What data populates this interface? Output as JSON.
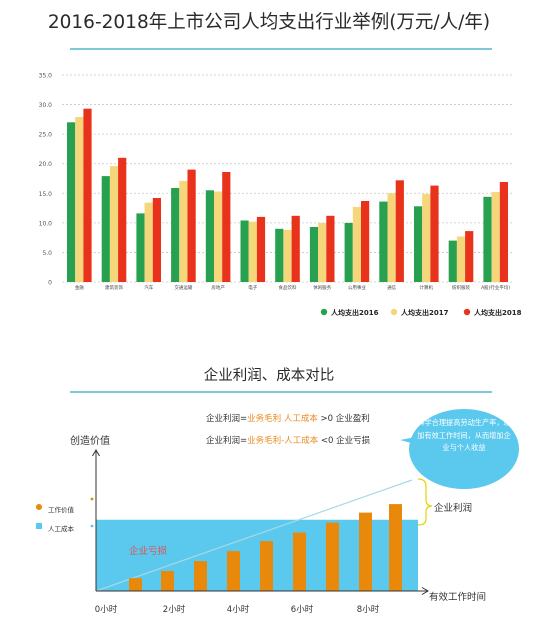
{
  "chart_data": [
    {
      "type": "bar",
      "title": "2016-2018年上市公司人均支出行业举例(万元/人/年)",
      "ylim": [
        0,
        35
      ],
      "yticks": [
        "0",
        "5.0",
        "10.0",
        "15.0",
        "20.0",
        "25.0",
        "30.0",
        "35.0"
      ],
      "categories": [
        "金融",
        "建筑装饰",
        "汽车",
        "交通运输",
        "房地产",
        "电子",
        "食品饮料",
        "休闲服务",
        "公用事业",
        "通信",
        "计算机",
        "纺织服装",
        "A股(行业平均)"
      ],
      "series": [
        {
          "name": "人均支出2016",
          "color": "#27a14f",
          "values": [
            27.0,
            17.9,
            11.6,
            15.9,
            15.5,
            10.4,
            9.0,
            9.3,
            10.0,
            13.6,
            12.8,
            7.0,
            14.4
          ]
        },
        {
          "name": "人均支出2017",
          "color": "#f6d67a",
          "values": [
            27.9,
            19.6,
            13.4,
            17.1,
            15.3,
            10.2,
            8.8,
            10.0,
            12.7,
            15.0,
            14.9,
            7.7,
            15.2
          ]
        },
        {
          "name": "人均支出2018",
          "color": "#e8321b",
          "values": [
            29.3,
            21.0,
            14.2,
            19.0,
            18.6,
            11.0,
            11.2,
            11.2,
            13.7,
            17.2,
            16.3,
            8.6,
            16.9
          ]
        }
      ],
      "grid": true,
      "legend": "bottom-right"
    },
    {
      "type": "bar",
      "title": "企业利润、成本对比",
      "ylabel": "创造价值",
      "xlabel": "有效工作时间",
      "x_tick_labels": [
        "0小时",
        "2小时",
        "4小时",
        "6小时",
        "8小时"
      ],
      "series": [
        {
          "name": "工作价值",
          "color": "#e8890c",
          "values": [
            0.9,
            1.4,
            2.1,
            2.8,
            3.5,
            4.1,
            4.8,
            5.5,
            6.1
          ]
        },
        {
          "name": "人工成本",
          "color": "#5bc8ee",
          "values": [
            5.0
          ]
        }
      ],
      "annotations": [
        "企业亏损",
        "企业利润"
      ],
      "legend": "left"
    }
  ],
  "section2": {
    "eq1": {
      "a": "企业利润=",
      "b": "业务毛利  人工成本",
      "c": " >0  企业盈利"
    },
    "eq2": {
      "a": "企业利润=",
      "b": "业务毛利-人工成本",
      "c": " <0  企业亏损"
    },
    "bubble_text": "科学合理提高劳动生产率，增加有效工作时间，从而增加企业与个人收益"
  }
}
